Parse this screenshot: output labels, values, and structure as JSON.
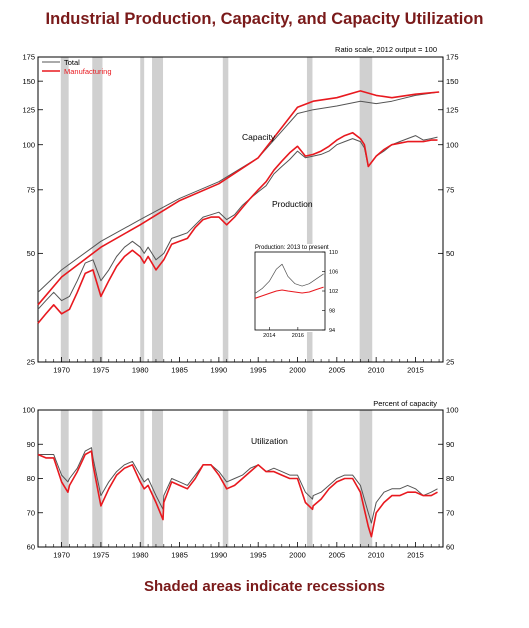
{
  "page": {
    "title": "Industrial Production, Capacity, and Capacity Utilization",
    "footer": "Shaded areas indicate recessions"
  },
  "colors": {
    "total": "#555555",
    "manufacturing": "#e8191f",
    "recession": "#d0d0d0",
    "title": "#7a1a1a"
  },
  "recessions": [
    [
      1969.9,
      1970.9
    ],
    [
      1973.9,
      1975.2
    ],
    [
      1980.0,
      1980.5
    ],
    [
      1981.5,
      1982.9
    ],
    [
      1990.5,
      1991.2
    ],
    [
      2001.2,
      2001.9
    ],
    [
      2007.9,
      2009.5
    ]
  ],
  "chart_data": [
    {
      "type": "line",
      "id": "top",
      "note": "Ratio scale, 2012 output = 100",
      "log_scale": true,
      "xlim": [
        1967,
        2018.5
      ],
      "ylim": [
        25,
        175
      ],
      "yticks": [
        25,
        50,
        75,
        100,
        125,
        150,
        175
      ],
      "xticks": [
        1970,
        1975,
        1980,
        1985,
        1990,
        1995,
        2000,
        2005,
        2010,
        2015
      ],
      "legend": [
        "Total",
        "Manufacturing"
      ],
      "labels": {
        "capacity": "Capacity",
        "production": "Production"
      },
      "series": [
        {
          "name": "Total",
          "group": "capacity",
          "x": [
            1967,
            1970,
            1975,
            1980,
            1985,
            1990,
            1995,
            2000,
            2002,
            2005,
            2008,
            2010,
            2012,
            2015,
            2018
          ],
          "y": [
            39,
            45,
            54,
            62,
            71,
            79,
            92,
            122,
            125,
            128,
            132,
            130,
            132,
            137,
            140
          ]
        },
        {
          "name": "Manufacturing",
          "group": "capacity",
          "x": [
            1967,
            1970,
            1975,
            1980,
            1985,
            1990,
            1995,
            2000,
            2002,
            2005,
            2008,
            2010,
            2012,
            2015,
            2018
          ],
          "y": [
            36,
            43,
            52,
            60,
            70,
            78,
            92,
            127,
            132,
            135,
            141,
            137,
            135,
            138,
            140
          ]
        },
        {
          "name": "Total",
          "group": "production",
          "x": [
            1967,
            1968,
            1969,
            1970,
            1971,
            1972,
            1973,
            1974,
            1975,
            1976,
            1977,
            1978,
            1979,
            1980,
            1980.5,
            1981,
            1982,
            1983,
            1984,
            1985,
            1986,
            1987,
            1988,
            1989,
            1990,
            1991,
            1992,
            1993,
            1994,
            1995,
            1996,
            1997,
            1998,
            1999,
            2000,
            2001,
            2002,
            2003,
            2004,
            2005,
            2006,
            2007,
            2008,
            2008.5,
            2009,
            2010,
            2011,
            2012,
            2013,
            2014,
            2015,
            2016,
            2017,
            2017.8
          ],
          "y": [
            35,
            37,
            39,
            37,
            38,
            42,
            47,
            48,
            42,
            45,
            49,
            52,
            54,
            52,
            50,
            52,
            48,
            50,
            55,
            56,
            57,
            60,
            63,
            64,
            65,
            62,
            64,
            68,
            71,
            74,
            77,
            83,
            87,
            91,
            96,
            92,
            93,
            94,
            96,
            100,
            102,
            104,
            102,
            98,
            87,
            93,
            96,
            100,
            102,
            104,
            106,
            103,
            104,
            105
          ]
        },
        {
          "name": "Manufacturing",
          "group": "production",
          "x": [
            1967,
            1968,
            1969,
            1970,
            1971,
            1972,
            1973,
            1974,
            1975,
            1976,
            1977,
            1978,
            1979,
            1980,
            1980.5,
            1981,
            1982,
            1983,
            1984,
            1985,
            1986,
            1987,
            1988,
            1989,
            1990,
            1991,
            1992,
            1993,
            1994,
            1995,
            1996,
            1997,
            1998,
            1999,
            2000,
            2001,
            2002,
            2003,
            2004,
            2005,
            2006,
            2007,
            2008,
            2008.5,
            2009,
            2010,
            2011,
            2012,
            2013,
            2014,
            2015,
            2016,
            2017,
            2017.8
          ],
          "y": [
            32,
            34,
            36,
            34,
            35,
            39,
            44,
            45,
            38,
            42,
            46,
            49,
            51,
            49,
            47,
            49,
            45,
            48,
            53,
            54,
            55,
            59,
            62,
            63,
            63,
            60,
            63,
            67,
            71,
            75,
            79,
            85,
            90,
            95,
            99,
            93,
            94,
            96,
            99,
            103,
            106,
            108,
            104,
            100,
            87,
            93,
            97,
            100,
            101,
            102,
            102,
            102,
            103,
            103
          ]
        }
      ]
    },
    {
      "type": "line",
      "id": "inset",
      "title": "Production: 2013 to present",
      "xlim": [
        2013,
        2017.9
      ],
      "ylim": [
        94,
        110
      ],
      "yticks": [
        94,
        98,
        102,
        106,
        110
      ],
      "xticks": [
        2014,
        2016
      ],
      "series": [
        {
          "name": "Total",
          "x": [
            2013,
            2013.5,
            2014,
            2014.5,
            2014.9,
            2015.3,
            2015.8,
            2016.3,
            2016.8,
            2017.3,
            2017.8
          ],
          "y": [
            101.5,
            102.5,
            104,
            106.5,
            107.5,
            105,
            103.5,
            103,
            103.5,
            104.5,
            105.5
          ]
        },
        {
          "name": "Manufacturing",
          "x": [
            2013,
            2013.5,
            2014,
            2014.5,
            2014.9,
            2015.3,
            2015.8,
            2016.3,
            2016.8,
            2017.3,
            2017.8
          ],
          "y": [
            100.5,
            101,
            101.5,
            102,
            102.2,
            102,
            101.8,
            101.6,
            101.8,
            102.3,
            102.8
          ]
        }
      ]
    },
    {
      "type": "line",
      "id": "bottom",
      "title": "Utilization",
      "note": "Percent of capacity",
      "xlim": [
        1967,
        2018.5
      ],
      "ylim": [
        60,
        100
      ],
      "yticks": [
        60,
        70,
        80,
        90,
        100
      ],
      "xticks": [
        1970,
        1975,
        1980,
        1985,
        1990,
        1995,
        2000,
        2005,
        2010,
        2015
      ],
      "series": [
        {
          "name": "Total",
          "x": [
            1967,
            1968,
            1969,
            1970,
            1970.8,
            1971,
            1972,
            1973,
            1973.8,
            1974,
            1975,
            1976,
            1977,
            1978,
            1979,
            1980,
            1980.5,
            1981,
            1982,
            1982.9,
            1983,
            1984,
            1985,
            1986,
            1987,
            1988,
            1989,
            1990,
            1991,
            1992,
            1993,
            1994,
            1995,
            1996,
            1997,
            1998,
            1999,
            2000,
            2001,
            2001.9,
            2002,
            2003,
            2004,
            2005,
            2006,
            2007,
            2008,
            2009,
            2009.4,
            2010,
            2011,
            2012,
            2013,
            2014,
            2015,
            2016,
            2017,
            2017.8
          ],
          "y": [
            87,
            87,
            87,
            81,
            79,
            80,
            83,
            88,
            89,
            86,
            75,
            79,
            82,
            84,
            85,
            81,
            79,
            80,
            75,
            71,
            75,
            80,
            79,
            78,
            81,
            84,
            84,
            82,
            79,
            80,
            81,
            83,
            84,
            82,
            83,
            82,
            81,
            81,
            76,
            74,
            75,
            76,
            78,
            80,
            81,
            81,
            78,
            70,
            67,
            73,
            76,
            77,
            77,
            78,
            77,
            75,
            76,
            77
          ]
        },
        {
          "name": "Manufacturing",
          "x": [
            1967,
            1968,
            1969,
            1970,
            1970.8,
            1971,
            1972,
            1973,
            1973.8,
            1974,
            1975,
            1976,
            1977,
            1978,
            1979,
            1980,
            1980.5,
            1981,
            1982,
            1982.9,
            1983,
            1984,
            1985,
            1986,
            1987,
            1988,
            1989,
            1990,
            1991,
            1992,
            1993,
            1994,
            1995,
            1996,
            1997,
            1998,
            1999,
            2000,
            2001,
            2001.9,
            2002,
            2003,
            2004,
            2005,
            2006,
            2007,
            2008,
            2009,
            2009.4,
            2010,
            2011,
            2012,
            2013,
            2014,
            2015,
            2016,
            2017,
            2017.8
          ],
          "y": [
            87,
            86,
            86,
            79,
            76,
            78,
            82,
            87,
            88,
            84,
            72,
            77,
            81,
            83,
            84,
            79,
            77,
            78,
            73,
            68,
            73,
            79,
            78,
            77,
            80,
            84,
            84,
            81,
            77,
            78,
            80,
            82,
            84,
            82,
            82,
            81,
            80,
            80,
            73,
            71,
            72,
            74,
            77,
            79,
            80,
            80,
            76,
            66,
            63,
            70,
            73,
            75,
            75,
            76,
            76,
            75,
            75,
            76
          ]
        }
      ]
    }
  ]
}
